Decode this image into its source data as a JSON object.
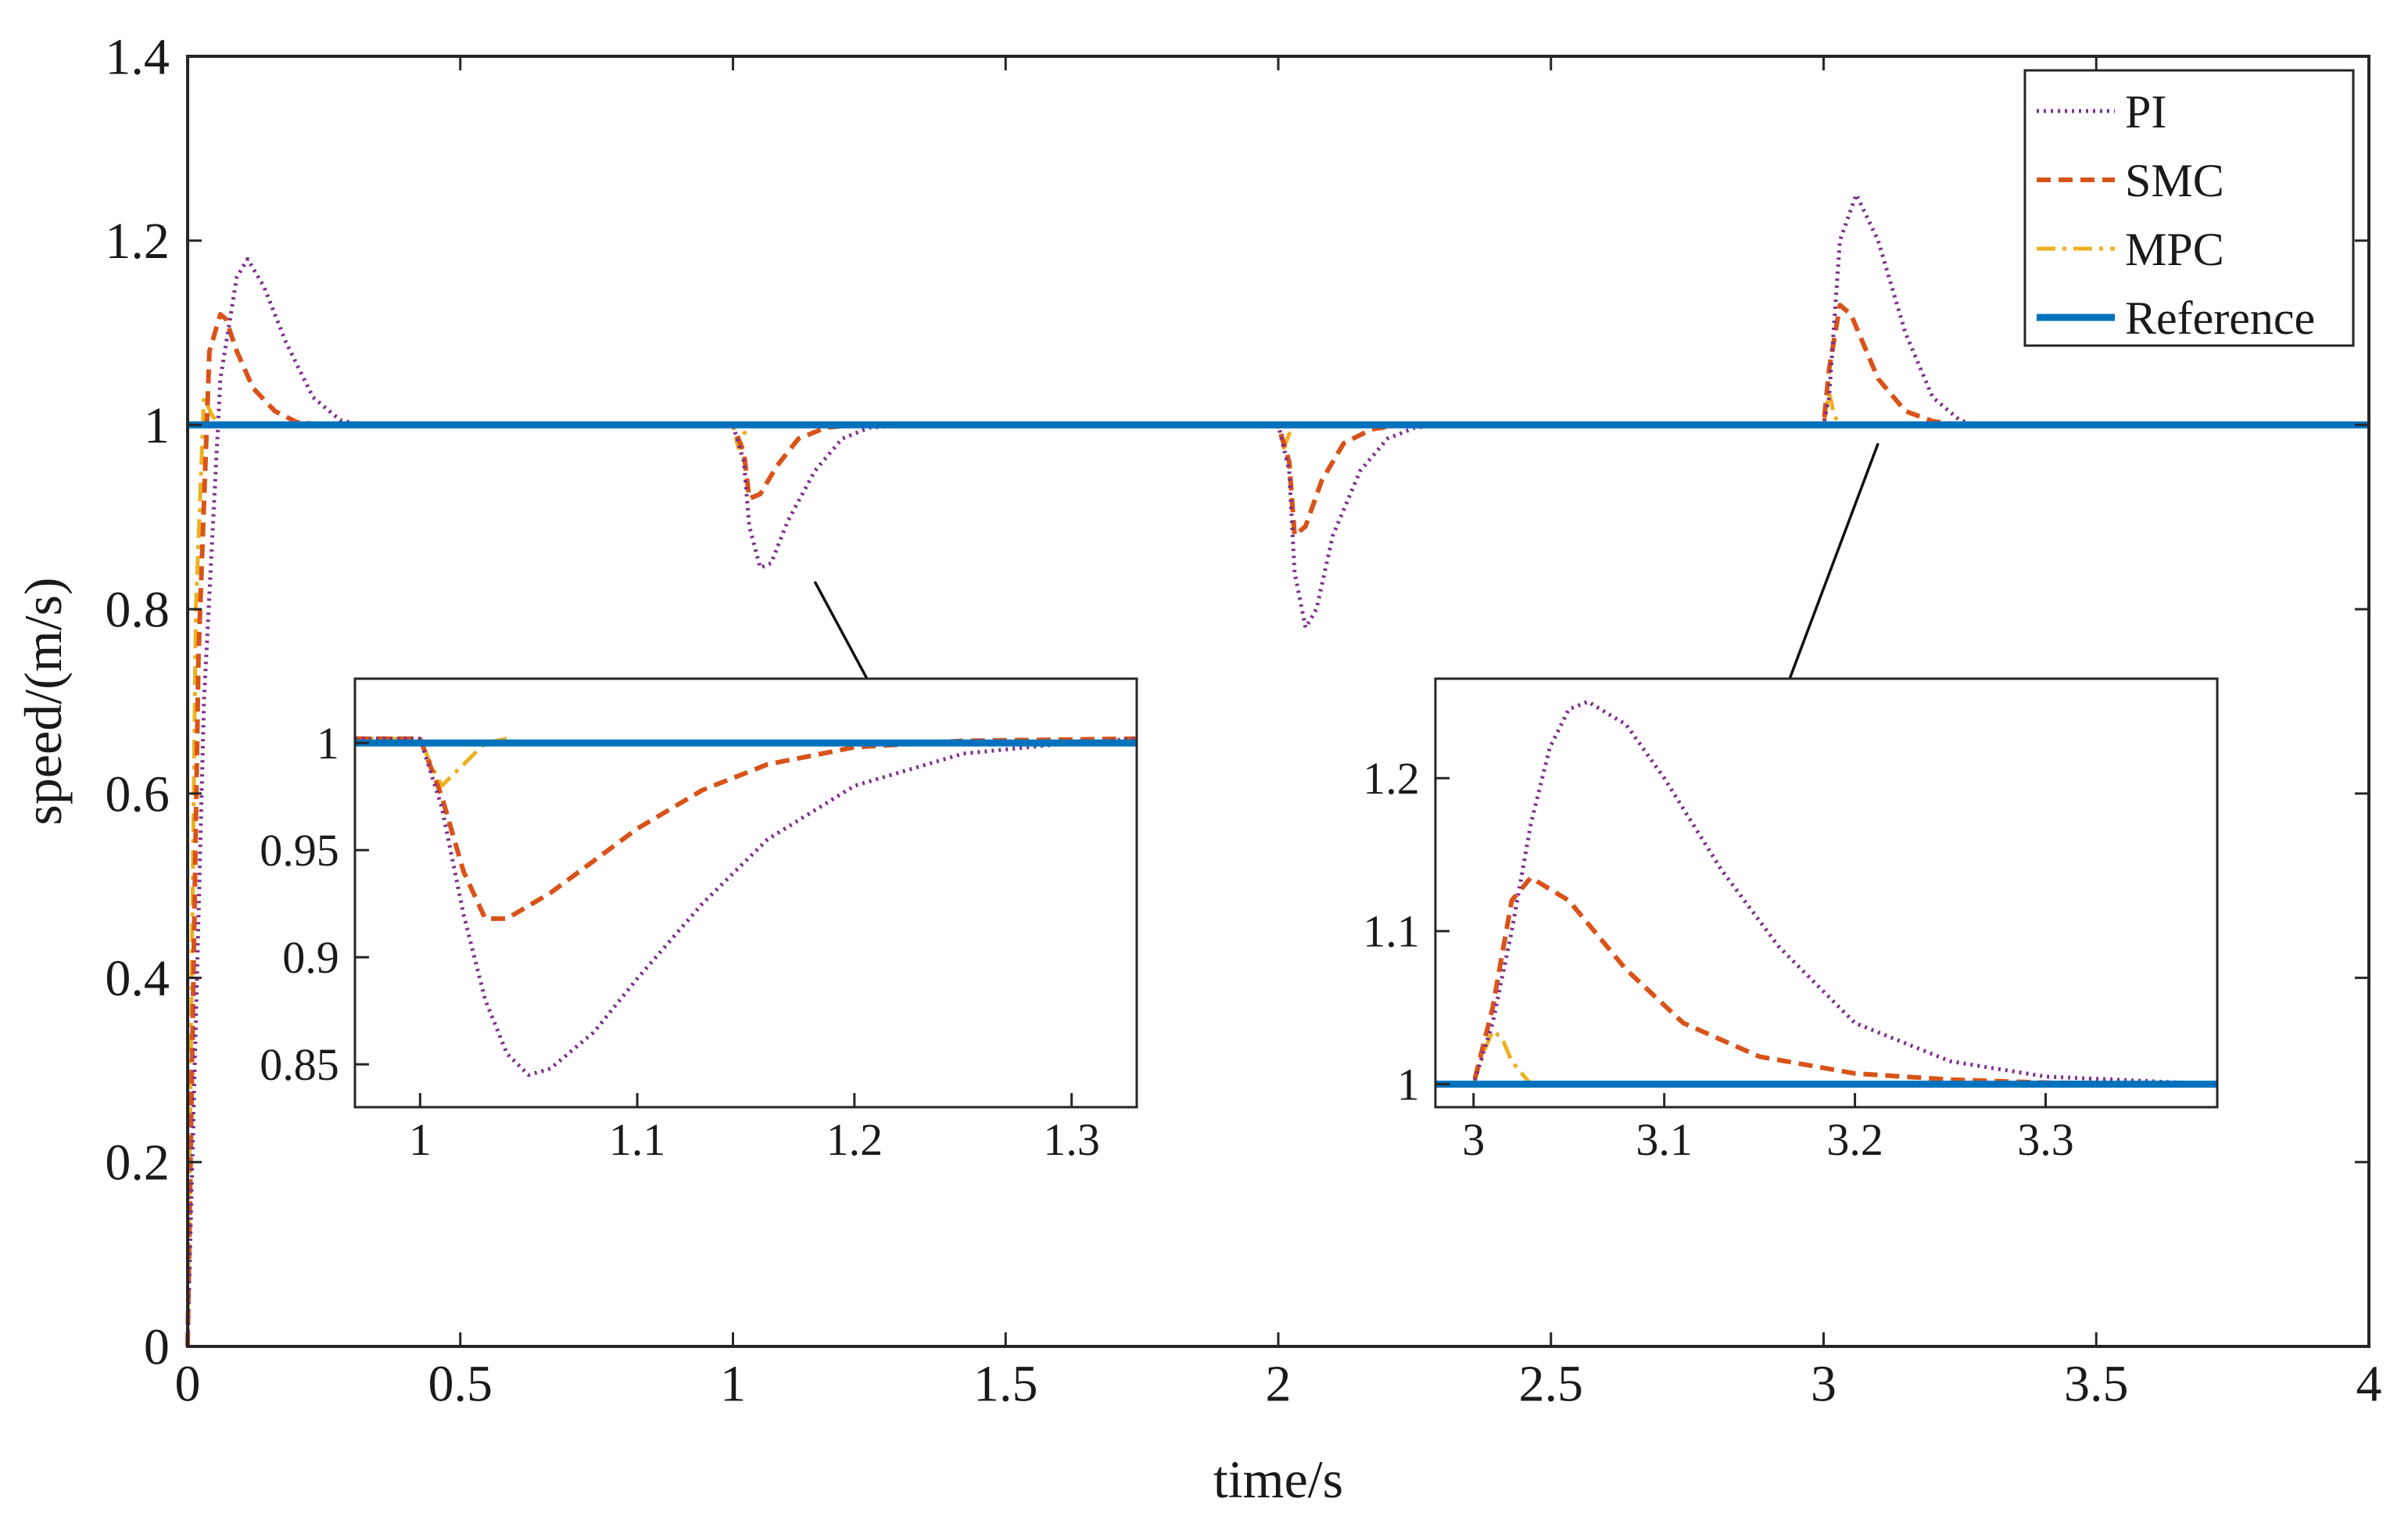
{
  "chart_data": {
    "type": "line",
    "xlabel": "time/s",
    "ylabel": "speed/(m/s)",
    "xlim": [
      0,
      4
    ],
    "ylim": [
      0,
      1.4
    ],
    "xticks": [
      0,
      0.5,
      1,
      1.5,
      2,
      2.5,
      3,
      3.5,
      4
    ],
    "xtick_labels": [
      "0",
      "0.5",
      "1",
      "1.5",
      "2",
      "2.5",
      "3",
      "3.5",
      "4"
    ],
    "yticks": [
      0,
      0.2,
      0.4,
      0.6,
      0.8,
      1,
      1.2,
      1.4
    ],
    "ytick_labels": [
      "0",
      "0.2",
      "0.4",
      "0.6",
      "0.8",
      "1",
      "1.2",
      "1.4"
    ],
    "legend": {
      "location": "top-right",
      "entries": [
        {
          "label": "PI",
          "color": "#7E2F8E",
          "style": "dotted"
        },
        {
          "label": "SMC",
          "color": "#D95319",
          "style": "dashed"
        },
        {
          "label": "MPC",
          "color": "#EDB120",
          "style": "dashdot"
        },
        {
          "label": "Reference",
          "color": "#0072BD",
          "style": "solid"
        }
      ]
    },
    "series": [
      {
        "name": "PI",
        "color": "#7E2F8E",
        "x": [
          0,
          0.03,
          0.06,
          0.09,
          0.11,
          0.14,
          0.18,
          0.23,
          0.28,
          0.32,
          1.0,
          1.02,
          1.03,
          1.05,
          1.07,
          1.1,
          1.15,
          1.2,
          1.25,
          1.32,
          2.0,
          2.02,
          2.03,
          2.05,
          2.07,
          2.1,
          2.15,
          2.2,
          2.25,
          2.3,
          3.0,
          3.01,
          3.03,
          3.06,
          3.1,
          3.15,
          3.2,
          3.25,
          3.28,
          4.0
        ],
        "y": [
          0,
          0.7,
          1.05,
          1.16,
          1.18,
          1.15,
          1.09,
          1.03,
          1.005,
          1.0,
          1.0,
          0.96,
          0.89,
          0.845,
          0.85,
          0.895,
          0.95,
          0.985,
          0.997,
          1.0,
          1.0,
          0.95,
          0.84,
          0.78,
          0.8,
          0.88,
          0.95,
          0.985,
          0.997,
          1.0,
          1.0,
          1.03,
          1.2,
          1.25,
          1.2,
          1.1,
          1.03,
          1.005,
          1.0,
          1.0
        ]
      },
      {
        "name": "SMC",
        "color": "#D95319",
        "x": [
          0,
          0.02,
          0.04,
          0.06,
          0.07,
          0.09,
          0.12,
          0.16,
          0.2,
          0.25,
          1.0,
          1.02,
          1.03,
          1.05,
          1.08,
          1.12,
          1.17,
          1.22,
          2.0,
          2.02,
          2.03,
          2.05,
          2.08,
          2.12,
          2.17,
          2.22,
          3.0,
          3.01,
          3.03,
          3.05,
          3.1,
          3.15,
          3.2,
          3.25,
          4.0
        ],
        "y": [
          0,
          0.75,
          1.08,
          1.12,
          1.115,
          1.08,
          1.04,
          1.015,
          1.003,
          1.0,
          1.0,
          0.97,
          0.92,
          0.925,
          0.955,
          0.985,
          0.997,
          1.0,
          1.0,
          0.96,
          0.88,
          0.89,
          0.94,
          0.98,
          0.995,
          1.0,
          1.0,
          1.06,
          1.13,
          1.12,
          1.05,
          1.015,
          1.004,
          1.0,
          1.0
        ]
      },
      {
        "name": "MPC",
        "color": "#EDB120",
        "x": [
          0,
          0.015,
          0.03,
          0.045,
          0.06,
          1.0,
          1.01,
          1.02,
          1.03,
          2.0,
          2.01,
          2.02,
          2.03,
          3.0,
          3.01,
          3.02,
          3.03,
          4.0
        ],
        "y": [
          0,
          0.8,
          1.03,
          1.01,
          1.0,
          1.0,
          0.975,
          0.99,
          1.0,
          1.0,
          0.975,
          0.99,
          1.0,
          1.0,
          1.035,
          1.01,
          1.0,
          1.0
        ]
      },
      {
        "name": "Reference",
        "color": "#0072BD",
        "x": [
          0,
          4
        ],
        "y": [
          1,
          1
        ]
      }
    ],
    "insets": [
      {
        "xlim": [
          0.97,
          1.33
        ],
        "ylim": [
          0.83,
          1.03
        ],
        "xticks": [
          1,
          1.1,
          1.2,
          1.3
        ],
        "xtick_labels": [
          "1",
          "1.1",
          "1.2",
          "1.3"
        ],
        "yticks": [
          0.85,
          0.9,
          0.95,
          1
        ],
        "ytick_labels": [
          "0.85",
          "0.9",
          "0.95",
          "1"
        ],
        "series": [
          {
            "name": "PI",
            "x": [
              0.97,
              1.0,
              1.01,
              1.02,
              1.03,
              1.04,
              1.05,
              1.06,
              1.08,
              1.1,
              1.13,
              1.16,
              1.2,
              1.25,
              1.3,
              1.33
            ],
            "y": [
              1.002,
              1.002,
              0.97,
              0.92,
              0.88,
              0.855,
              0.845,
              0.848,
              0.865,
              0.89,
              0.925,
              0.955,
              0.98,
              0.995,
              1.0,
              1.002
            ]
          },
          {
            "name": "SMC",
            "x": [
              0.97,
              1.0,
              1.01,
              1.02,
              1.03,
              1.04,
              1.06,
              1.08,
              1.1,
              1.13,
              1.16,
              1.2,
              1.25,
              1.33
            ],
            "y": [
              1.002,
              1.002,
              0.975,
              0.94,
              0.918,
              0.918,
              0.93,
              0.945,
              0.96,
              0.978,
              0.99,
              0.998,
              1.001,
              1.002
            ]
          },
          {
            "name": "MPC",
            "x": [
              0.97,
              1.0,
              1.005,
              1.01,
              1.02,
              1.03,
              1.04
            ],
            "y": [
              1.002,
              1.002,
              0.99,
              0.98,
              0.99,
              1.0,
              1.002
            ]
          },
          {
            "name": "Reference",
            "x": [
              0.97,
              1.33
            ],
            "y": [
              1.0,
              1.0
            ]
          }
        ]
      },
      {
        "xlim": [
          2.98,
          3.39
        ],
        "ylim": [
          0.985,
          1.265
        ],
        "xticks": [
          3,
          3.1,
          3.2,
          3.3
        ],
        "xtick_labels": [
          "3",
          "3.1",
          "3.2",
          "3.3"
        ],
        "yticks": [
          1,
          1.1,
          1.2
        ],
        "ytick_labels": [
          "1",
          "1.1",
          "1.2"
        ],
        "series": [
          {
            "name": "PI",
            "x": [
              2.98,
              3.0,
              3.01,
              3.02,
              3.03,
              3.04,
              3.05,
              3.06,
              3.08,
              3.1,
              3.13,
              3.16,
              3.2,
              3.25,
              3.3,
              3.39
            ],
            "y": [
              1.0,
              1.0,
              1.04,
              1.1,
              1.17,
              1.22,
              1.245,
              1.25,
              1.235,
              1.2,
              1.14,
              1.09,
              1.04,
              1.015,
              1.005,
              1.0
            ]
          },
          {
            "name": "SMC",
            "x": [
              2.98,
              3.0,
              3.01,
              3.02,
              3.03,
              3.05,
              3.08,
              3.11,
              3.15,
              3.2,
              3.25,
              3.3,
              3.39
            ],
            "y": [
              1.0,
              1.0,
              1.05,
              1.12,
              1.135,
              1.12,
              1.075,
              1.04,
              1.018,
              1.007,
              1.003,
              1.001,
              1.0
            ]
          },
          {
            "name": "MPC",
            "x": [
              2.98,
              3.0,
              3.005,
              3.01,
              3.015,
              3.02,
              3.03
            ],
            "y": [
              1.0,
              1.0,
              1.02,
              1.035,
              1.03,
              1.015,
              1.0
            ]
          },
          {
            "name": "Reference",
            "x": [
              2.98,
              3.39
            ],
            "y": [
              1.0,
              1.0
            ]
          }
        ]
      }
    ],
    "annotations": [
      {
        "type": "arrow",
        "points_to": "inset-1",
        "from": {
          "x": 1.15,
          "y": 0.83
        },
        "to": {
          "x": 1.3,
          "y": 0.665
        }
      },
      {
        "type": "arrow",
        "points_to": "inset-2",
        "from": {
          "x": 3.1,
          "y": 0.98
        },
        "to": {
          "x": 2.9,
          "y": 0.665
        }
      }
    ]
  }
}
